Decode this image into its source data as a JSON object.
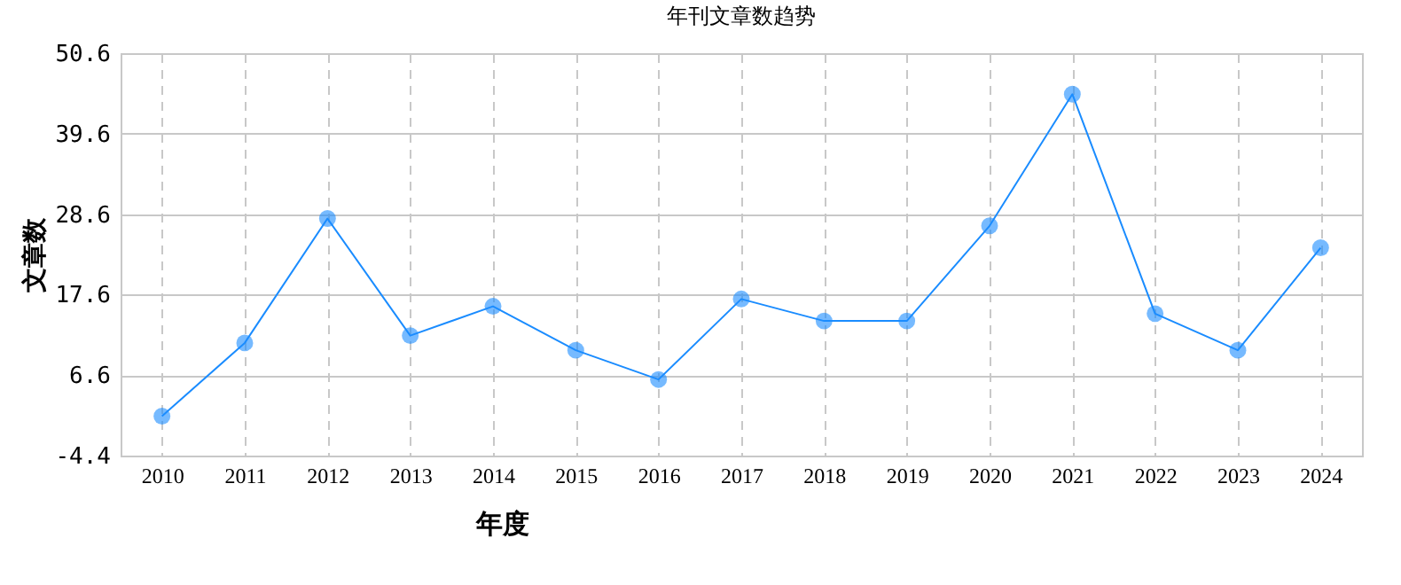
{
  "chart_data": {
    "type": "line",
    "title": "年刊文章数趋势",
    "xlabel": "年度",
    "ylabel": "文章数",
    "categories": [
      "2010",
      "2011",
      "2012",
      "2013",
      "2014",
      "2015",
      "2016",
      "2017",
      "2018",
      "2019",
      "2020",
      "2021",
      "2022",
      "2023",
      "2024"
    ],
    "series": [
      {
        "color": "#1a8cff",
        "values": [
          1,
          11,
          28,
          12,
          16,
          10,
          6,
          17,
          14,
          14,
          27,
          45,
          15,
          10,
          24
        ]
      }
    ],
    "ylim": [
      -4.4,
      50.6
    ],
    "yticks": [
      -4.4,
      6.6,
      17.6,
      28.6,
      39.6,
      50.6
    ],
    "grid": true,
    "marker": "circle",
    "line_style": "solid"
  }
}
